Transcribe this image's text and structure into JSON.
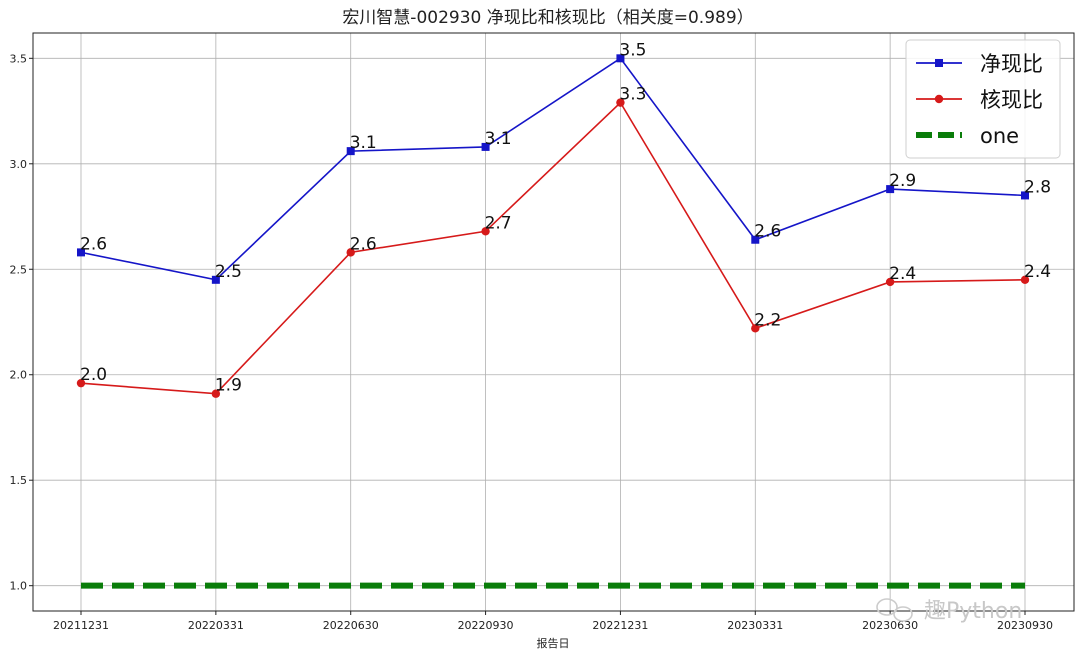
{
  "chart_data": {
    "type": "line",
    "title": "宏川智慧-002930 净现比和核现比（相关度=0.989）",
    "xlabel": "报告日",
    "ylabel": "",
    "categories": [
      "20211231",
      "20220331",
      "20220630",
      "20220930",
      "20221231",
      "20230331",
      "20230630",
      "20230930"
    ],
    "ylim": [
      0.88,
      3.62
    ],
    "yticks": [
      1.0,
      1.5,
      2.0,
      2.5,
      3.0,
      3.5
    ],
    "ytick_labels": [
      "1.0",
      "1.5",
      "2.0",
      "2.5",
      "3.0",
      "3.5"
    ],
    "grid": true,
    "legend_position": "top-right",
    "series": [
      {
        "name": "净现比",
        "color": "#1515c8",
        "marker": "square",
        "style": "solid",
        "values": [
          2.58,
          2.45,
          3.06,
          3.08,
          3.5,
          2.64,
          2.88,
          2.85
        ],
        "labels": [
          "2.6",
          "2.5",
          "3.1",
          "3.1",
          "3.5",
          "2.6",
          "2.9",
          "2.8"
        ]
      },
      {
        "name": "核现比",
        "color": "#d61a1a",
        "marker": "circle",
        "style": "solid",
        "values": [
          1.96,
          1.91,
          2.58,
          2.68,
          3.29,
          2.22,
          2.44,
          2.45
        ],
        "labels": [
          "2.0",
          "1.9",
          "2.6",
          "2.7",
          "3.3",
          "2.2",
          "2.4",
          "2.4"
        ]
      },
      {
        "name": "one",
        "color": "#0a7d0a",
        "marker": "none",
        "style": "dashed",
        "values": [
          1,
          1,
          1,
          1,
          1,
          1,
          1,
          1
        ],
        "labels": []
      }
    ]
  },
  "watermark": {
    "icon": "wechat-icon",
    "text": "趣Python"
  }
}
